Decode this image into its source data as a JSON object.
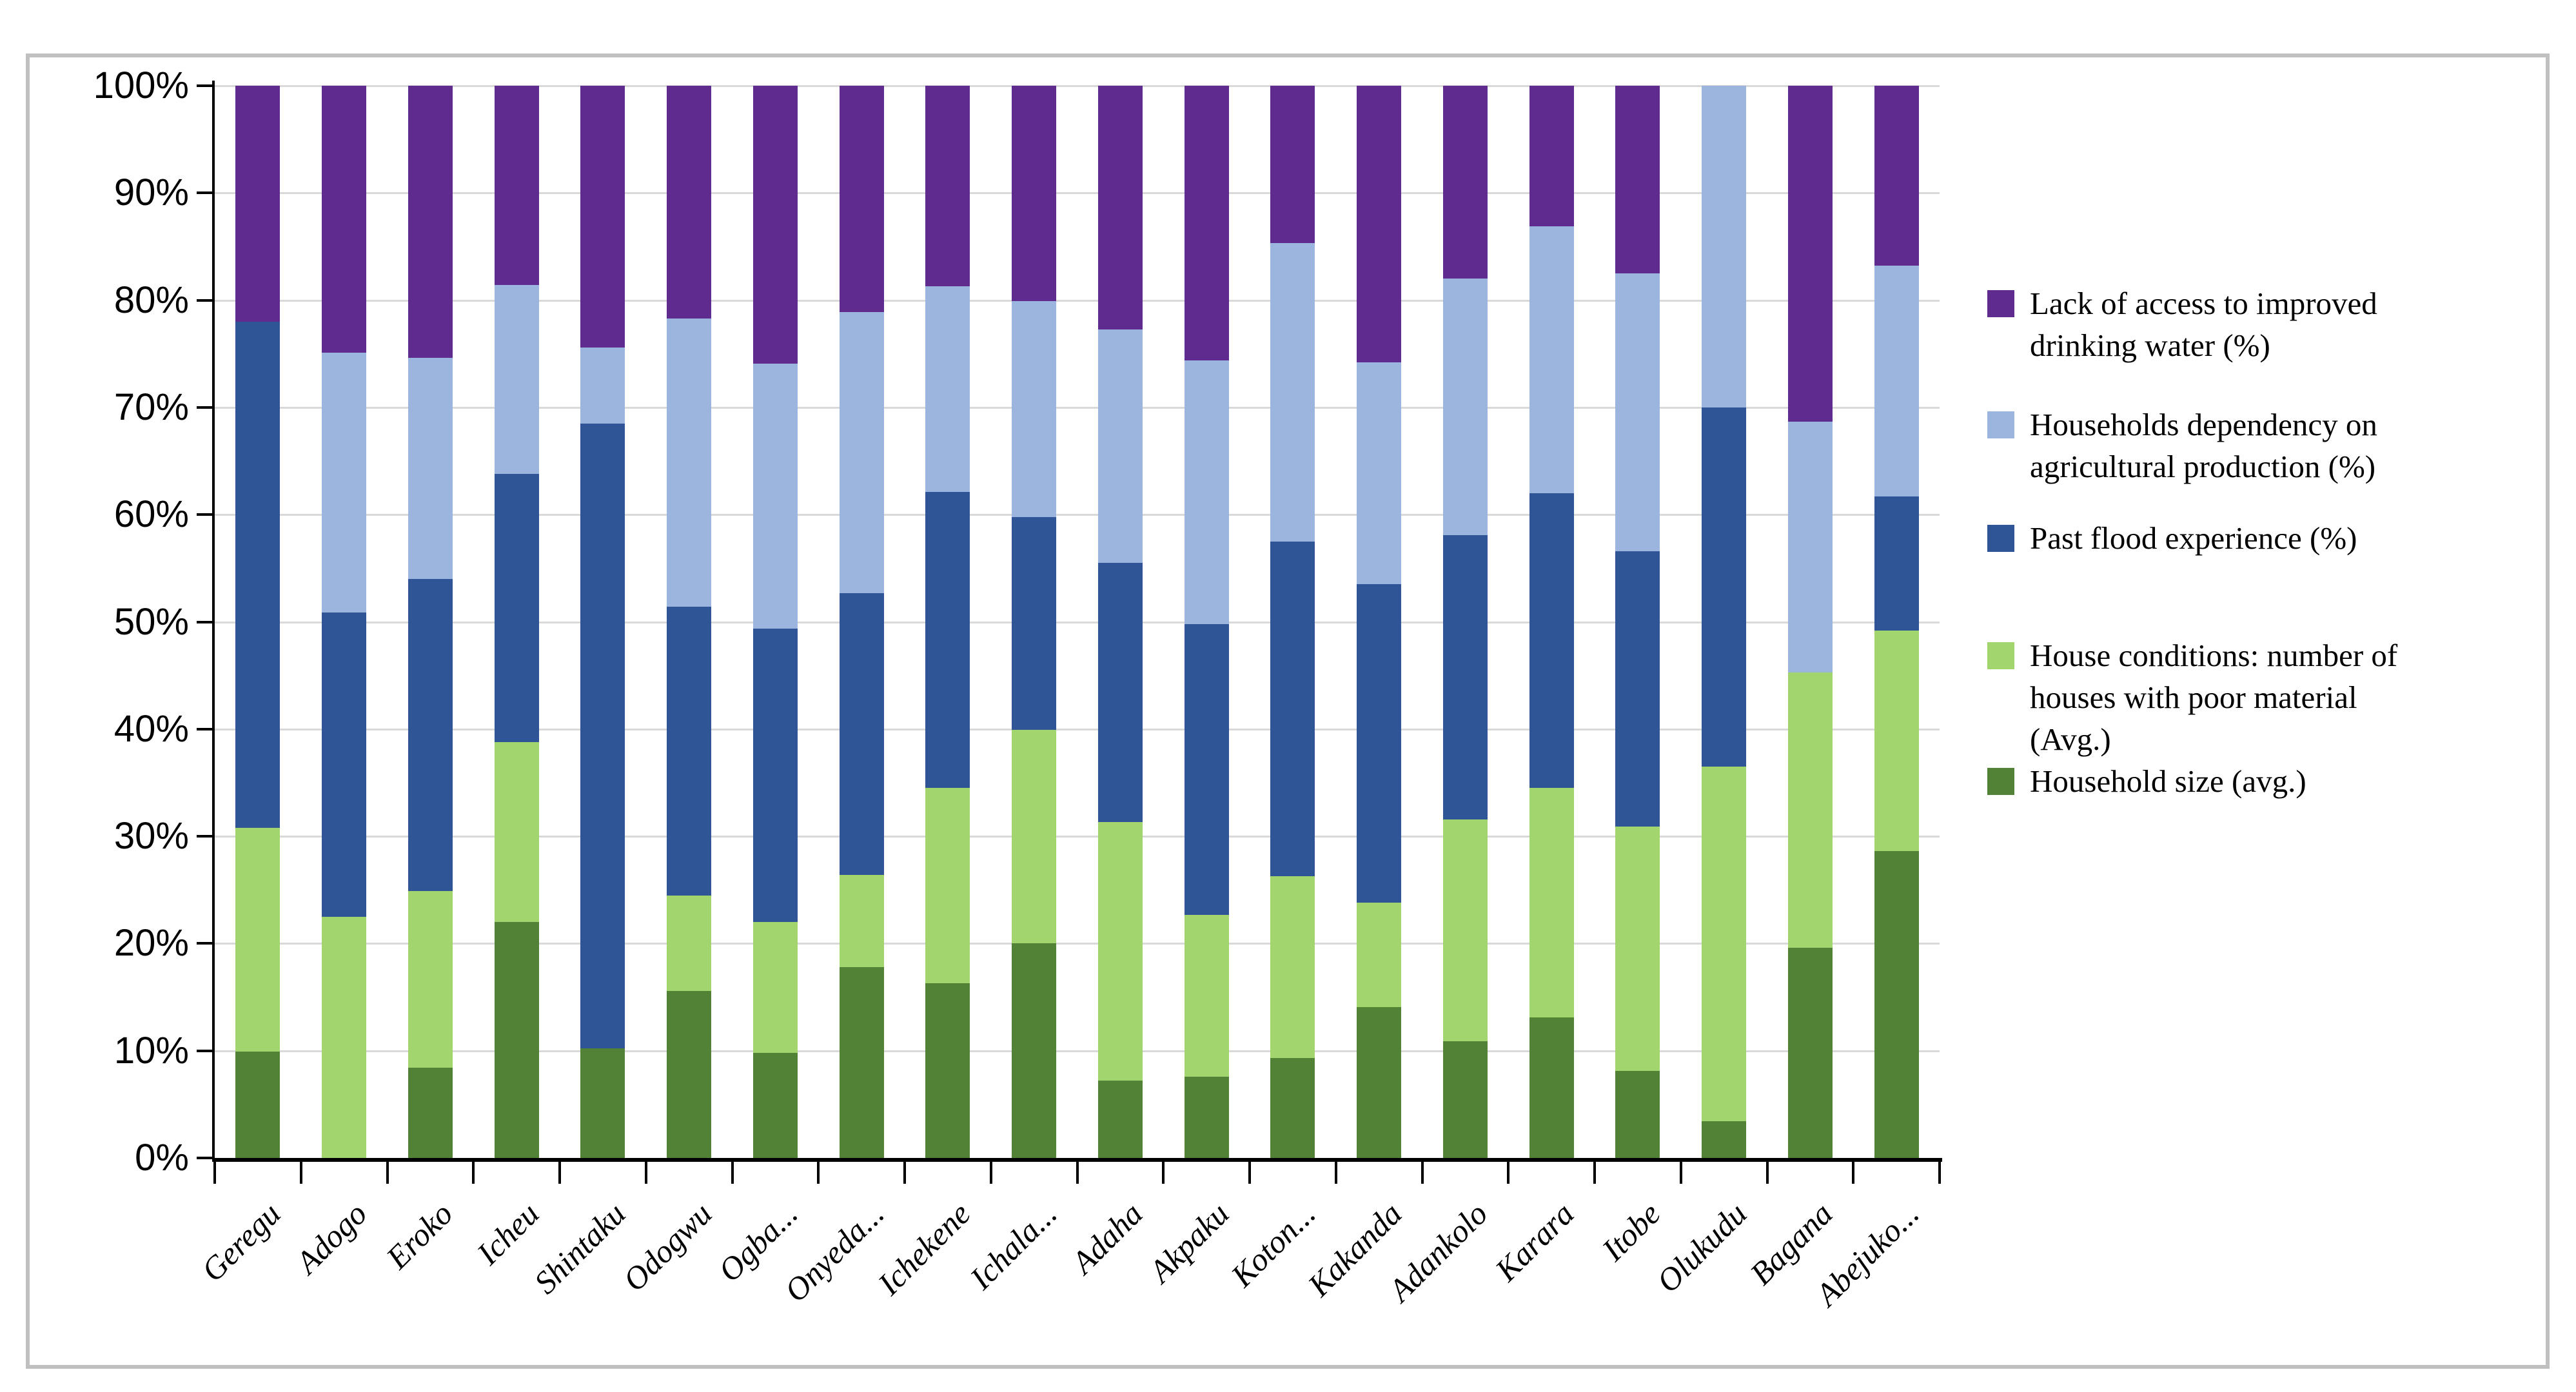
{
  "figure": {
    "background": "#ffffff",
    "frame_color": "#c0c0c0"
  },
  "chart_data": {
    "type": "bar",
    "stacked": true,
    "percent_axis": true,
    "title": "",
    "xlabel": "",
    "ylabel": "",
    "grid": true,
    "grid_color": "#d9d9d9",
    "legend_position": "right",
    "legend_order": [
      4,
      3,
      2,
      1,
      0
    ],
    "categories": [
      "Geregu",
      "Adogo",
      "Eroko",
      "Icheu",
      "Shintaku",
      "Odogwu",
      "Ogba...",
      "Onyeda...",
      "Ichekene",
      "Ichala...",
      "Adaha",
      "Akpaku",
      "Koton...",
      "Kakanda",
      "Adankolo",
      "Karara",
      "Itobe",
      "Olukudu",
      "Bagana",
      "Abejuko..."
    ],
    "series": [
      {
        "name": "Household size (avg.)",
        "color": "#518235",
        "values": [
          9.9,
          0,
          8.4,
          22.0,
          10.2,
          15.6,
          9.8,
          17.8,
          16.3,
          20.0,
          7.2,
          7.6,
          9.3,
          14.1,
          10.9,
          13.1,
          8.1,
          3.4,
          19.6,
          28.6
        ]
      },
      {
        "name": "House conditions: number of houses with poor material (Avg.)",
        "color": "#a2d56e",
        "values": [
          20.9,
          22.5,
          16.5,
          16.8,
          0,
          8.9,
          12.2,
          8.6,
          18.2,
          19.9,
          24.1,
          15.1,
          17.0,
          9.7,
          20.7,
          21.4,
          22.8,
          33.1,
          25.7,
          20.6
        ]
      },
      {
        "name": "Past flood experience (%)",
        "color": "#2f5597",
        "values": [
          47.2,
          28.4,
          29.1,
          25.0,
          58.3,
          26.9,
          27.4,
          26.3,
          27.6,
          19.9,
          24.2,
          27.1,
          31.2,
          29.7,
          26.5,
          27.5,
          25.7,
          33.5,
          0,
          12.5
        ]
      },
      {
        "name": "Households dependency on agricultural production (%)",
        "color": "#9bb5df",
        "values": [
          0,
          24.2,
          20.6,
          17.6,
          7.1,
          26.9,
          24.7,
          26.2,
          19.2,
          20.1,
          21.8,
          24.6,
          27.8,
          20.7,
          23.9,
          24.9,
          25.9,
          30.0,
          23.4,
          21.5
        ]
      },
      {
        "name": "Lack of access to improved drinking water (%)",
        "color": "#5f2b8f",
        "values": [
          22.0,
          24.9,
          25.4,
          18.6,
          24.4,
          21.7,
          25.9,
          21.1,
          18.7,
          20.1,
          22.7,
          25.6,
          14.7,
          25.8,
          18.0,
          13.1,
          17.5,
          0,
          31.3,
          16.8
        ]
      }
    ],
    "y_axis": {
      "min": 0,
      "max": 100,
      "ticks": [
        "0%",
        "10%",
        "20%",
        "30%",
        "40%",
        "50%",
        "60%",
        "70%",
        "80%",
        "90%",
        "100%"
      ]
    }
  }
}
